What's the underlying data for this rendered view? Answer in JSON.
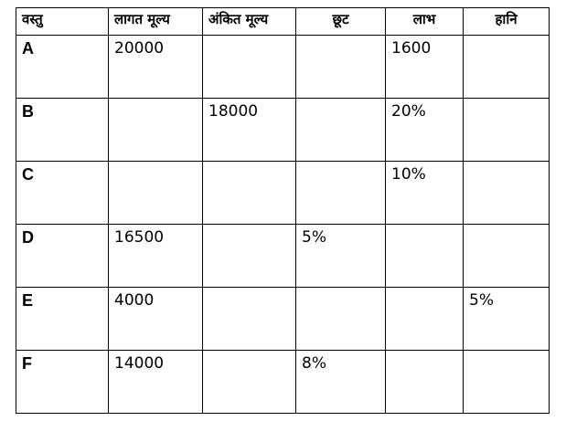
{
  "table": {
    "headers": [
      "वस्तु",
      "लागत मूल्य",
      "अंकित मूल्य",
      "छूट",
      "लाभ",
      "हानि"
    ],
    "rows": [
      [
        "A",
        "20000",
        "",
        "",
        "1600",
        ""
      ],
      [
        "B",
        "",
        "18000",
        "",
        "20%",
        ""
      ],
      [
        "C",
        "",
        "",
        "",
        "10%",
        ""
      ],
      [
        "D",
        "16500",
        "",
        "5%",
        "",
        ""
      ],
      [
        "E",
        "4000",
        "",
        "",
        "",
        "5%"
      ],
      [
        "F",
        "14000",
        "",
        "8%",
        "",
        ""
      ]
    ]
  }
}
